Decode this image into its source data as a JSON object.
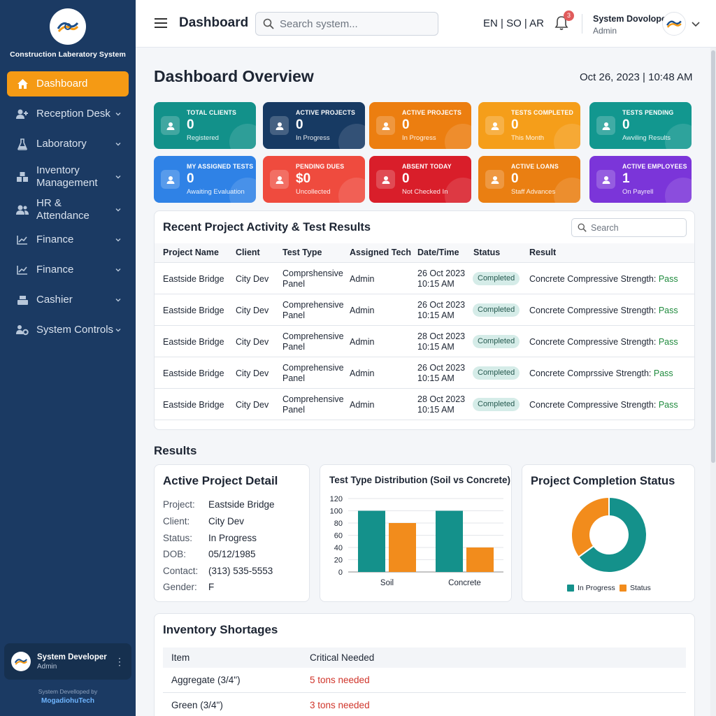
{
  "app": {
    "name": "Construction Laberatory System"
  },
  "sidebar": {
    "items": [
      {
        "label": "Dashboard",
        "icon": "home-icon"
      },
      {
        "label": "Reception Desk",
        "icon": "user-plus-icon"
      },
      {
        "label": "Laboratory",
        "icon": "flask-icon"
      },
      {
        "label": "Inventory Management",
        "icon": "boxes-icon"
      },
      {
        "label": "HR & Attendance",
        "icon": "users-icon"
      },
      {
        "label": "Finance",
        "icon": "chart-icon"
      },
      {
        "label": "Finance",
        "icon": "chart-icon"
      },
      {
        "label": "Cashier",
        "icon": "register-icon"
      },
      {
        "label": "System Controls",
        "icon": "users-gear-icon"
      }
    ],
    "user": {
      "name": "System Developer",
      "role": "Admin"
    },
    "credit": {
      "line1": "System Develloped by",
      "line2": "MogadiohuTech"
    }
  },
  "topbar": {
    "title": "Dashboard",
    "search_placeholder": "Search system...",
    "languages": "EN | SO | AR",
    "notification_count": "3",
    "user_name": "System Dovoloper",
    "user_role": "Admin"
  },
  "overview": {
    "title": "Dashboard Overview",
    "datetime": "Oct 26, 2023 | 10:48 AM"
  },
  "cards": [
    {
      "label": "TOTAL CLIENTS",
      "value": "0",
      "sub": "Registered",
      "color": "#12918a"
    },
    {
      "label": "ACTIVE PROJECTS",
      "value": "0",
      "sub": "In Progress",
      "color": "#173a63"
    },
    {
      "label": "ACTIVE PROJECTS",
      "value": "0",
      "sub": "In Progress",
      "color": "#ec7e10"
    },
    {
      "label": "TESTS COMPLETED",
      "value": "0",
      "sub": "This Month",
      "color": "#f59e1a"
    },
    {
      "label": "TESTS PENDING",
      "value": "0",
      "sub": "Awviling Results",
      "color": "#12978f"
    },
    {
      "label": "MY ASSIGNED TESTS",
      "value": "0",
      "sub": "Awaiting Evaluation",
      "color": "#2f82e6"
    },
    {
      "label": "PENDING DUES",
      "value": "$0",
      "sub": "Uncollected",
      "color": "#ef4b3e"
    },
    {
      "label": "ABSENT TODAY",
      "value": "0",
      "sub": "Not Checked In",
      "color": "#d91e2a"
    },
    {
      "label": "ACTIVE LOANS",
      "value": "0",
      "sub": "Staff Advances",
      "color": "#ea7f12"
    },
    {
      "label": "ACTIVE EMPLOYEES",
      "value": "1",
      "sub": "On Payrell",
      "color": "#7b35d9"
    }
  ],
  "recent": {
    "title": "Recent Project Activity & Test Results",
    "search_placeholder": "Search",
    "columns": [
      "Project Name",
      "Client",
      "Test Type",
      "Assigned Tech",
      "Date/Time",
      "Status",
      "Result"
    ],
    "rows": [
      {
        "project": "Eastside Bridge",
        "client": "City Dev",
        "test1": "Comprshensive",
        "test2": "Panel",
        "tech": "Admin",
        "date": "26 Oct 2023",
        "time": "10:15 AM",
        "status": "Completed",
        "result": "Concrete Compressive Strength:",
        "outcome": "Pass"
      },
      {
        "project": "Eastside Bridge",
        "client": "City Dev",
        "test1": "Comprehensive",
        "test2": "Panel",
        "tech": "Admin",
        "date": "26 Oct 2023",
        "time": "10:15 AM",
        "status": "Completed",
        "result": "Concrete Compressive Strength:",
        "outcome": "Pass"
      },
      {
        "project": "Eastside Bridge",
        "client": "City Dev",
        "test1": "Comprehensive",
        "test2": "Panel",
        "tech": "Admin",
        "date": "28 Oct 2023",
        "time": "10:15 AM",
        "status": "Completed",
        "result": "Concrete Compressive Strength:",
        "outcome": "Pass"
      },
      {
        "project": "Eastside Bridge",
        "client": "City Dev",
        "test1": "Comprehensive",
        "test2": "Panel",
        "tech": "Admin",
        "date": "26 Oct 2023",
        "time": "10:15 AM",
        "status": "Completed",
        "result": "Concrete Comprssive Strength:",
        "outcome": "Pass"
      },
      {
        "project": "Eastside Bridge",
        "client": "City Dev",
        "test1": "Comprehensive",
        "test2": "Panel",
        "tech": "Admin",
        "date": "28 Oct 2023",
        "time": "10:15 AM",
        "status": "Completed",
        "result": "Concrete Compressive Strength:",
        "outcome": "Pass"
      }
    ]
  },
  "results_heading": "Results",
  "detail": {
    "title": "Active Project Detail",
    "fields": [
      {
        "label": "Project:",
        "value": "Eastside Bridge"
      },
      {
        "label": "Client:",
        "value": "City Dev"
      },
      {
        "label": "Status:",
        "value": "In Progress"
      },
      {
        "label": "DOB:",
        "value": "05/12/1985"
      },
      {
        "label": "Contact:",
        "value": "(313) 535-5553"
      },
      {
        "label": "Gender:",
        "value": "F"
      }
    ]
  },
  "chart_data": [
    {
      "type": "bar",
      "title": "Test Type Distribution (Soil vs Concrete)",
      "categories": [
        "Soil",
        "Concrete"
      ],
      "series": [
        {
          "values": [
            100,
            100
          ],
          "color": "#14918b"
        },
        {
          "values": [
            80,
            40
          ],
          "color": "#f28c1c"
        }
      ],
      "ylim": [
        0,
        120
      ],
      "yticks": [
        0,
        20,
        40,
        60,
        80,
        100,
        120
      ],
      "grid": true
    },
    {
      "type": "pie",
      "title": "Project Completion Status",
      "donut": true,
      "labels": [
        "In Progress",
        "Status"
      ],
      "values": [
        65,
        35
      ],
      "colors": [
        "#14918b",
        "#f28c1c"
      ],
      "legend": "bottom"
    }
  ],
  "inventory": {
    "title": "Inventory Shortages",
    "columns": [
      "Item",
      "Critical Needed"
    ],
    "rows": [
      {
        "item": "Aggregate (3/4\")",
        "need": "5 tons needed"
      },
      {
        "item": "Green (3/4\")",
        "need": "3 tons needed"
      }
    ]
  }
}
